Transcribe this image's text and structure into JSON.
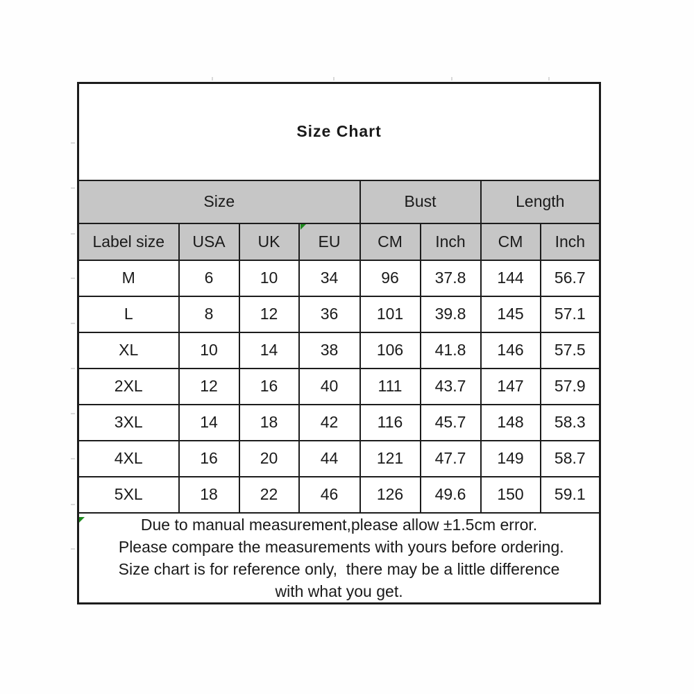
{
  "title": "Size Chart",
  "table": {
    "group_headers": [
      {
        "label": "Size",
        "span": 4
      },
      {
        "label": "Bust",
        "span": 2
      },
      {
        "label": "Length",
        "span": 2
      }
    ],
    "columns": [
      "Label size",
      "USA",
      "UK",
      "EU",
      "CM",
      "Inch",
      "CM",
      "Inch"
    ],
    "rows": [
      [
        "M",
        "6",
        "10",
        "34",
        "96",
        "37.8",
        "144",
        "56.7"
      ],
      [
        "L",
        "8",
        "12",
        "36",
        "101",
        "39.8",
        "145",
        "57.1"
      ],
      [
        "XL",
        "10",
        "14",
        "38",
        "106",
        "41.8",
        "146",
        "57.5"
      ],
      [
        "2XL",
        "12",
        "16",
        "40",
        "111",
        "43.7",
        "147",
        "57.9"
      ],
      [
        "3XL",
        "14",
        "18",
        "42",
        "116",
        "45.7",
        "148",
        "58.3"
      ],
      [
        "4XL",
        "16",
        "20",
        "44",
        "121",
        "47.7",
        "149",
        "58.7"
      ],
      [
        "5XL",
        "18",
        "22",
        "46",
        "126",
        "49.6",
        "150",
        "59.1"
      ]
    ]
  },
  "footer": {
    "lines": [
      "Due to manual measurement,please allow ±1.5cm error.",
      " Please compare the measurements with yours before ordering.",
      "Size chart is for reference only,  there may be a little difference",
      "with what you get."
    ]
  },
  "colors": {
    "header_bg": "#c6c6c6",
    "border": "#1c1c1c",
    "text": "#1a1a1a",
    "artifact_green": "#1f8a1f"
  },
  "chart_data": {
    "type": "table",
    "title": "Size Chart",
    "column_groups": [
      "Size",
      "Size",
      "Size",
      "Size",
      "Bust",
      "Bust",
      "Length",
      "Length"
    ],
    "columns": [
      "Label size",
      "USA",
      "UK",
      "EU",
      "Bust CM",
      "Bust Inch",
      "Length CM",
      "Length Inch"
    ],
    "rows": [
      [
        "M",
        6,
        10,
        34,
        96,
        37.8,
        144,
        56.7
      ],
      [
        "L",
        8,
        12,
        36,
        101,
        39.8,
        145,
        57.1
      ],
      [
        "XL",
        10,
        14,
        38,
        106,
        41.8,
        146,
        57.5
      ],
      [
        "2XL",
        12,
        16,
        40,
        111,
        43.7,
        147,
        57.9
      ],
      [
        "3XL",
        14,
        18,
        42,
        116,
        45.7,
        148,
        58.3
      ],
      [
        "4XL",
        16,
        20,
        44,
        121,
        47.7,
        149,
        58.7
      ],
      [
        "5XL",
        18,
        22,
        46,
        126,
        49.6,
        150,
        59.1
      ]
    ],
    "notes": [
      "Due to manual measurement,please allow ±1.5cm error.",
      "Please compare the measurements with yours before ordering.",
      "Size chart is for reference only, there may be a little difference with what you get."
    ]
  }
}
